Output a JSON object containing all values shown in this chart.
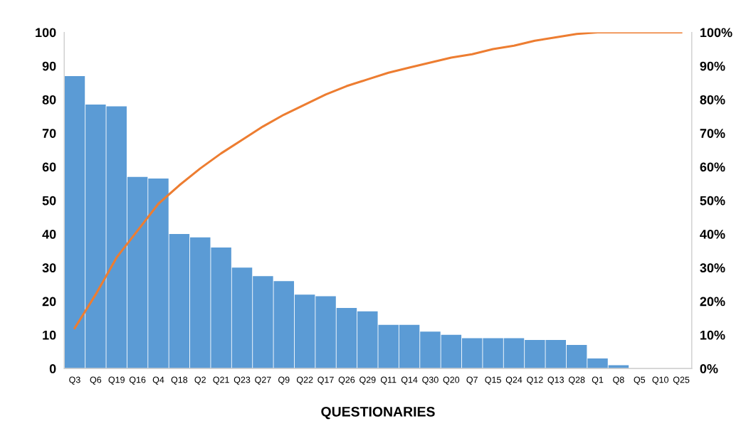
{
  "chart_data": {
    "type": "bar",
    "xlabel": "QUESTIONARIES",
    "categories": [
      "Q3",
      "Q6",
      "Q19",
      "Q16",
      "Q4",
      "Q18",
      "Q2",
      "Q21",
      "Q23",
      "Q27",
      "Q9",
      "Q22",
      "Q17",
      "Q26",
      "Q29",
      "Q11",
      "Q14",
      "Q30",
      "Q20",
      "Q7",
      "Q15",
      "Q24",
      "Q12",
      "Q13",
      "Q28",
      "Q1",
      "Q8",
      "Q5",
      "Q10",
      "Q25"
    ],
    "series": [
      {
        "color": "#5b9bd5",
        "values": [
          87,
          78.5,
          78,
          57,
          56.5,
          40,
          39,
          36,
          30,
          27.5,
          26,
          22,
          21.5,
          18,
          17,
          13,
          13,
          11,
          10,
          9,
          9,
          9,
          8.5,
          8.5,
          7,
          3,
          1,
          0,
          0,
          0
        ]
      },
      {
        "type": "line",
        "axis": "y2",
        "color": "#ed7d31",
        "values": [
          12,
          22,
          33,
          41,
          49,
          54.5,
          59.5,
          64,
          68,
          72,
          75.5,
          78.5,
          81.5,
          84,
          86,
          88,
          89.5,
          91,
          92.5,
          93.5,
          95,
          96,
          97.5,
          98.5,
          99.5,
          100,
          100,
          100,
          100,
          100
        ]
      }
    ],
    "ylim": [
      0,
      100
    ],
    "yticks": [
      0,
      10,
      20,
      30,
      40,
      50,
      60,
      70,
      80,
      90,
      100
    ],
    "y2lim": [
      0,
      100
    ],
    "y2ticks": [
      {
        "value": 0,
        "label": "0%"
      },
      {
        "value": 10,
        "label": "10%"
      },
      {
        "value": 20,
        "label": "20%"
      },
      {
        "value": 30,
        "label": "30%"
      },
      {
        "value": 40,
        "label": "40%"
      },
      {
        "value": 50,
        "label": "50%"
      },
      {
        "value": 60,
        "label": "60%"
      },
      {
        "value": 70,
        "label": "70%"
      },
      {
        "value": 80,
        "label": "80%"
      },
      {
        "value": 90,
        "label": "90%"
      },
      {
        "value": 100,
        "label": "100%"
      }
    ],
    "grid": false,
    "marker": "none",
    "line_style": "solid"
  }
}
